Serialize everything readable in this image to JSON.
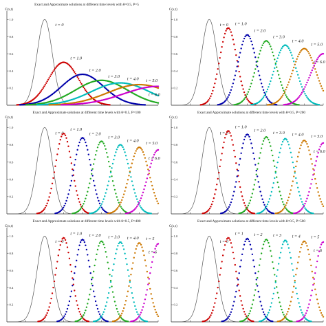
{
  "colors": {
    "exact": "#555555",
    "axis": "#333333",
    "series": [
      "#cc0000",
      "#0000aa",
      "#22aa22",
      "#00bbbb",
      "#cc7700",
      "#cc00cc"
    ]
  },
  "chart_data": [
    {
      "type": "line",
      "title": "Exact and Approximate solutions at different time levels with θ=0.5, P=5",
      "ylabel": "C(x,t)",
      "y_ticks": [
        "1.0",
        "0.8",
        "0.6",
        "0.4",
        "0.2"
      ],
      "xlim": [
        0,
        4
      ],
      "ylim": [
        0,
        1.05
      ],
      "series": [
        {
          "label": "t = 0",
          "peak_x": 1.0,
          "peak_y": 1.0
        },
        {
          "label": "t = 1.0",
          "peak_x": 1.5,
          "peak_y": 0.5
        },
        {
          "label": "t = 2.0",
          "peak_x": 2.0,
          "peak_y": 0.36
        },
        {
          "label": "t = 3.0",
          "peak_x": 2.5,
          "peak_y": 0.29
        },
        {
          "label": "t = 4.0",
          "peak_x": 3.0,
          "peak_y": 0.26
        },
        {
          "label": "t = 5.0",
          "peak_x": 3.5,
          "peak_y": 0.24
        },
        {
          "label": "t = 6.0",
          "peak_x": 4.0,
          "peak_y": 0.22
        }
      ]
    },
    {
      "type": "line",
      "title": "",
      "ylabel": "C(x,t)",
      "y_ticks": [
        "1.0",
        "0.8",
        "0.6",
        "0.4",
        "0.2"
      ],
      "xlim": [
        0,
        4
      ],
      "ylim": [
        0,
        1.05
      ],
      "series": [
        {
          "label": "t = 0",
          "peak_x": 1.0,
          "peak_y": 1.0
        },
        {
          "label": "t = 1.0",
          "peak_x": 1.5,
          "peak_y": 0.9
        },
        {
          "label": "t = 2.0",
          "peak_x": 2.0,
          "peak_y": 0.82
        },
        {
          "label": "t = 3.0",
          "peak_x": 2.5,
          "peak_y": 0.75
        },
        {
          "label": "t = 4.0",
          "peak_x": 3.0,
          "peak_y": 0.7
        },
        {
          "label": "t = 5.0",
          "peak_x": 3.5,
          "peak_y": 0.66
        },
        {
          "label": "t = 6.0",
          "peak_x": 4.0,
          "peak_y": 0.6
        }
      ]
    },
    {
      "type": "line",
      "title": "Exact and Approximate solutions at different time levels with θ=0.5, P=100",
      "ylabel": "C(x,t)",
      "y_ticks": [
        "1.0",
        "0.8",
        "0.6",
        "0.4",
        "0.2"
      ],
      "xlim": [
        0,
        4
      ],
      "ylim": [
        0,
        1.05
      ],
      "series": [
        {
          "label": "t = 0",
          "peak_x": 1.0,
          "peak_y": 1.0
        },
        {
          "label": "t = 1.0",
          "peak_x": 1.5,
          "peak_y": 0.93
        },
        {
          "label": "t = 2.0",
          "peak_x": 2.0,
          "peak_y": 0.88
        },
        {
          "label": "t = 3.0",
          "peak_x": 2.5,
          "peak_y": 0.84
        },
        {
          "label": "t = 4.0",
          "peak_x": 3.0,
          "peak_y": 0.8
        },
        {
          "label": "t = 5.0",
          "peak_x": 3.5,
          "peak_y": 0.77
        },
        {
          "label": "t = 6.0",
          "peak_x": 4.0,
          "peak_y": 0.74
        }
      ]
    },
    {
      "type": "line",
      "title": "Exact and Approximate solutions at different time levels with θ=0.5, P=200",
      "ylabel": "C(x,t)",
      "y_ticks": [
        "1.0",
        "0.8",
        "0.6",
        "0.4",
        "0.2"
      ],
      "xlim": [
        0,
        4
      ],
      "ylim": [
        0,
        1.05
      ],
      "series": [
        {
          "label": "t = 0",
          "peak_x": 1.0,
          "peak_y": 1.0
        },
        {
          "label": "t = 1.0",
          "peak_x": 1.5,
          "peak_y": 0.96
        },
        {
          "label": "t = 2.0",
          "peak_x": 2.0,
          "peak_y": 0.92
        },
        {
          "label": "t = 3.0",
          "peak_x": 2.5,
          "peak_y": 0.89
        },
        {
          "label": "t = 4.0",
          "peak_x": 3.0,
          "peak_y": 0.87
        },
        {
          "label": "t = 5.0",
          "peak_x": 3.5,
          "peak_y": 0.85
        },
        {
          "label": "t = 6.0",
          "peak_x": 4.0,
          "peak_y": 0.82
        }
      ]
    },
    {
      "type": "line",
      "title": "Exact and Approximate solutions at different time levels with θ=0.5, P=400",
      "ylabel": "C(x,t)",
      "y_ticks": [
        "1.0",
        "0.8",
        "0.6",
        "0.4",
        "0.2"
      ],
      "xlim": [
        0,
        4
      ],
      "ylim": [
        0,
        1.05
      ],
      "series": [
        {
          "label": "t = 0",
          "peak_x": 1.0,
          "peak_y": 1.0
        },
        {
          "label": "t = 1.0",
          "peak_x": 1.5,
          "peak_y": 0.98
        },
        {
          "label": "t = 2.0",
          "peak_x": 2.0,
          "peak_y": 0.96
        },
        {
          "label": "t = 3.0",
          "peak_x": 2.5,
          "peak_y": 0.94
        },
        {
          "label": "t = 4.0",
          "peak_x": 3.0,
          "peak_y": 0.93
        },
        {
          "label": "t = 5",
          "peak_x": 3.5,
          "peak_y": 0.92
        },
        {
          "label": "t = 6",
          "peak_x": 4.0,
          "peak_y": 0.91
        }
      ]
    },
    {
      "type": "line",
      "title": "Exact and Approximate solutions at different time levels with θ=0.5, P=500",
      "ylabel": "C(x,t)",
      "y_ticks": [
        "1.0",
        "0.8",
        "0.6",
        "0.4",
        "0.2"
      ],
      "xlim": [
        0,
        4
      ],
      "ylim": [
        0,
        1.05
      ],
      "series": [
        {
          "label": "t = 0",
          "peak_x": 1.0,
          "peak_y": 1.0
        },
        {
          "label": "t = 1",
          "peak_x": 1.5,
          "peak_y": 0.98
        },
        {
          "label": "t = 2",
          "peak_x": 2.0,
          "peak_y": 0.97
        },
        {
          "label": "t = 3",
          "peak_x": 2.5,
          "peak_y": 0.96
        },
        {
          "label": "t = 4",
          "peak_x": 3.0,
          "peak_y": 0.95
        },
        {
          "label": "t = 5",
          "peak_x": 3.5,
          "peak_y": 0.94
        },
        {
          "label": "t = 6",
          "peak_x": 4.0,
          "peak_y": 0.93
        }
      ]
    }
  ]
}
